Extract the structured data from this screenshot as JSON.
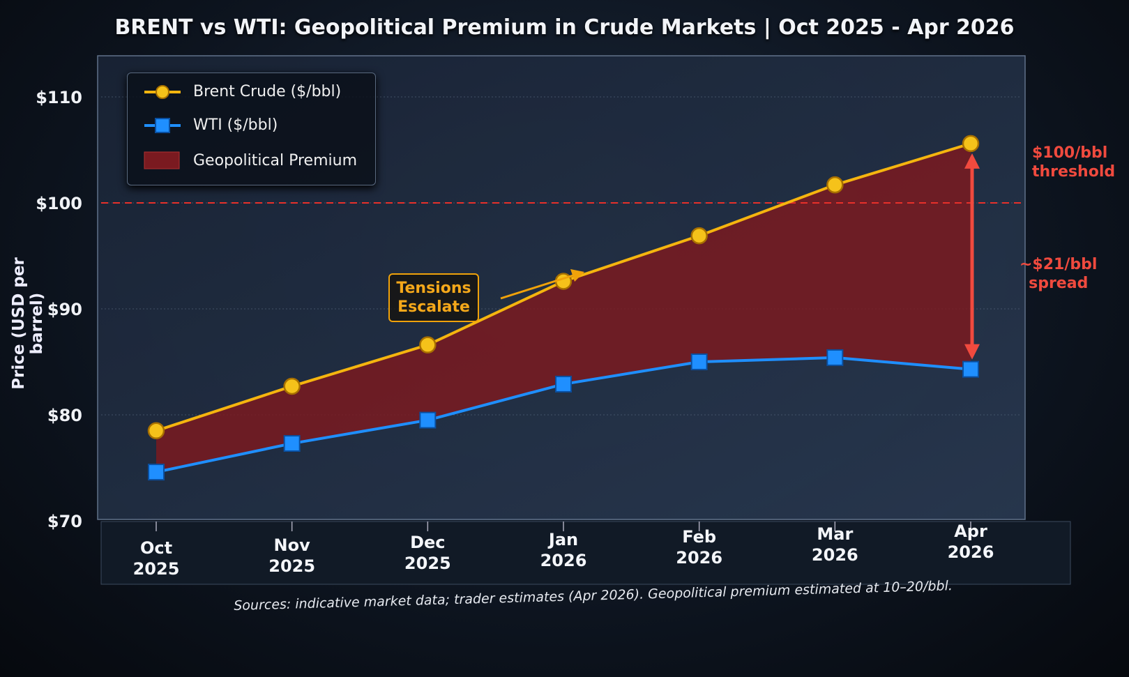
{
  "chart_data": {
    "type": "line",
    "title": "BRENT vs WTI: Geopolitical Premium in Crude Markets  |  Oct 2025 - Apr 2026",
    "ylabel": "Price (USD per barrel)",
    "xlabel": "",
    "ylim": [
      70,
      110
    ],
    "yticks": [
      70,
      80,
      90,
      100,
      110
    ],
    "ytick_labels": [
      "$70",
      "$80",
      "$90",
      "$100",
      "$110"
    ],
    "categories": [
      [
        "Oct",
        "2025"
      ],
      [
        "Nov",
        "2025"
      ],
      [
        "Dec",
        "2025"
      ],
      [
        "Jan",
        "2026"
      ],
      [
        "Feb",
        "2026"
      ],
      [
        "Mar",
        "2026"
      ],
      [
        "Apr",
        "2026"
      ]
    ],
    "series": [
      {
        "name": "Brent Crude ($/bbl)",
        "color": "#f5b50f",
        "marker": "circle",
        "values": [
          78.5,
          82.7,
          86.6,
          92.6,
          96.9,
          101.7,
          105.6
        ]
      },
      {
        "name": "WTI ($/bbl)",
        "color": "#1f8fff",
        "marker": "square",
        "values": [
          74.6,
          77.3,
          79.5,
          82.9,
          85.0,
          85.4,
          84.3
        ]
      }
    ],
    "fill_between": {
      "name": "Geopolitical Premium",
      "color": "#7a1a20"
    },
    "reference_line": {
      "y": 100,
      "color": "#e8302a",
      "style": "dashed"
    },
    "annotations": {
      "threshold": [
        "$100/bbl",
        "threshold"
      ],
      "spread": [
        "~$21/bbl",
        "spread"
      ],
      "tension": [
        "Tensions",
        "Escalate"
      ]
    },
    "legend_position": "top-left",
    "grid": true
  },
  "footnote": "Sources: indicative market data; trader estimates (Apr 2026). Geopolitical premium estimated at 10–20/bbl."
}
